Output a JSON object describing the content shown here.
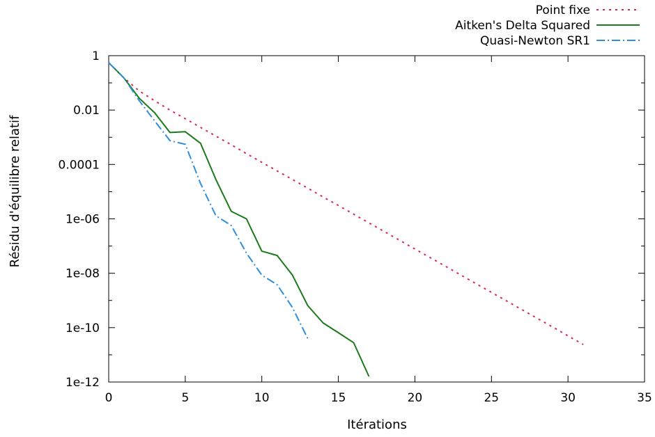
{
  "chart_data": {
    "type": "line",
    "xlabel": "Itérations",
    "ylabel": "Résidu d'équilibre relatif",
    "xlim": [
      0,
      35
    ],
    "ylim": [
      1e-12,
      1
    ],
    "yscale": "log",
    "grid": false,
    "legend_position": "top-right",
    "x_ticks": [
      0,
      5,
      10,
      15,
      20,
      25,
      30,
      35
    ],
    "x_tick_labels": [
      "0",
      "5",
      "10",
      "15",
      "20",
      "25",
      "30",
      "35"
    ],
    "y_ticks": [
      1,
      0.01,
      0.0001,
      1e-06,
      1e-08,
      1e-10,
      1e-12
    ],
    "y_tick_labels": [
      "1",
      "0.01",
      "0.0001",
      "1e-06",
      "1e-08",
      "1e-10",
      "1e-12"
    ],
    "series": [
      {
        "name": "Point fixe",
        "color": "#d6294a",
        "style": "dotted",
        "x": [
          0,
          1,
          2,
          3,
          4,
          5,
          6,
          7,
          8,
          9,
          10,
          11,
          12,
          13,
          14,
          15,
          16,
          17,
          18,
          19,
          20,
          21,
          22,
          23,
          24,
          25,
          26,
          27,
          28,
          29,
          30,
          31
        ],
        "y": [
          0.55,
          0.15,
          0.05,
          0.022,
          0.01,
          0.0048,
          0.0023,
          0.0011,
          0.00053,
          0.00025,
          0.00012,
          5.8e-05,
          2.8e-05,
          1.34e-05,
          6.4e-06,
          3.1e-06,
          1.48e-06,
          7.1e-07,
          3.4e-07,
          1.63e-07,
          7.8e-08,
          3.75e-08,
          1.8e-08,
          8.6e-09,
          4.1e-09,
          1.98e-09,
          9.5e-10,
          4.55e-10,
          2.18e-10,
          1.05e-10,
          5e-11,
          2.4e-11
        ]
      },
      {
        "name": "Aitken's Delta Squared",
        "color": "#1a7a1a",
        "style": "solid",
        "x": [
          0,
          1,
          2,
          3,
          4,
          5,
          6,
          7,
          8,
          9,
          10,
          11,
          12,
          13,
          14,
          15,
          16,
          17
        ],
        "y": [
          0.55,
          0.15,
          0.027,
          0.008,
          0.0015,
          0.0016,
          0.0006,
          2.8e-05,
          1.9e-06,
          1e-06,
          6.5e-08,
          4.5e-08,
          8.5e-09,
          6.5e-10,
          1.5e-10,
          6.5e-11,
          2.8e-11,
          1.6e-12
        ]
      },
      {
        "name": "Quasi-Newton SR1",
        "color": "#2f8fdd",
        "style": "dashdot",
        "x": [
          0,
          1,
          2,
          3,
          4,
          5,
          6,
          7,
          8,
          9,
          10,
          11,
          12,
          13
        ],
        "y": [
          0.55,
          0.15,
          0.022,
          0.004,
          0.00075,
          0.00055,
          2e-05,
          1.3e-06,
          5.7e-07,
          5.5e-08,
          8.5e-09,
          3.8e-09,
          5.5e-10,
          4e-11
        ]
      }
    ]
  }
}
